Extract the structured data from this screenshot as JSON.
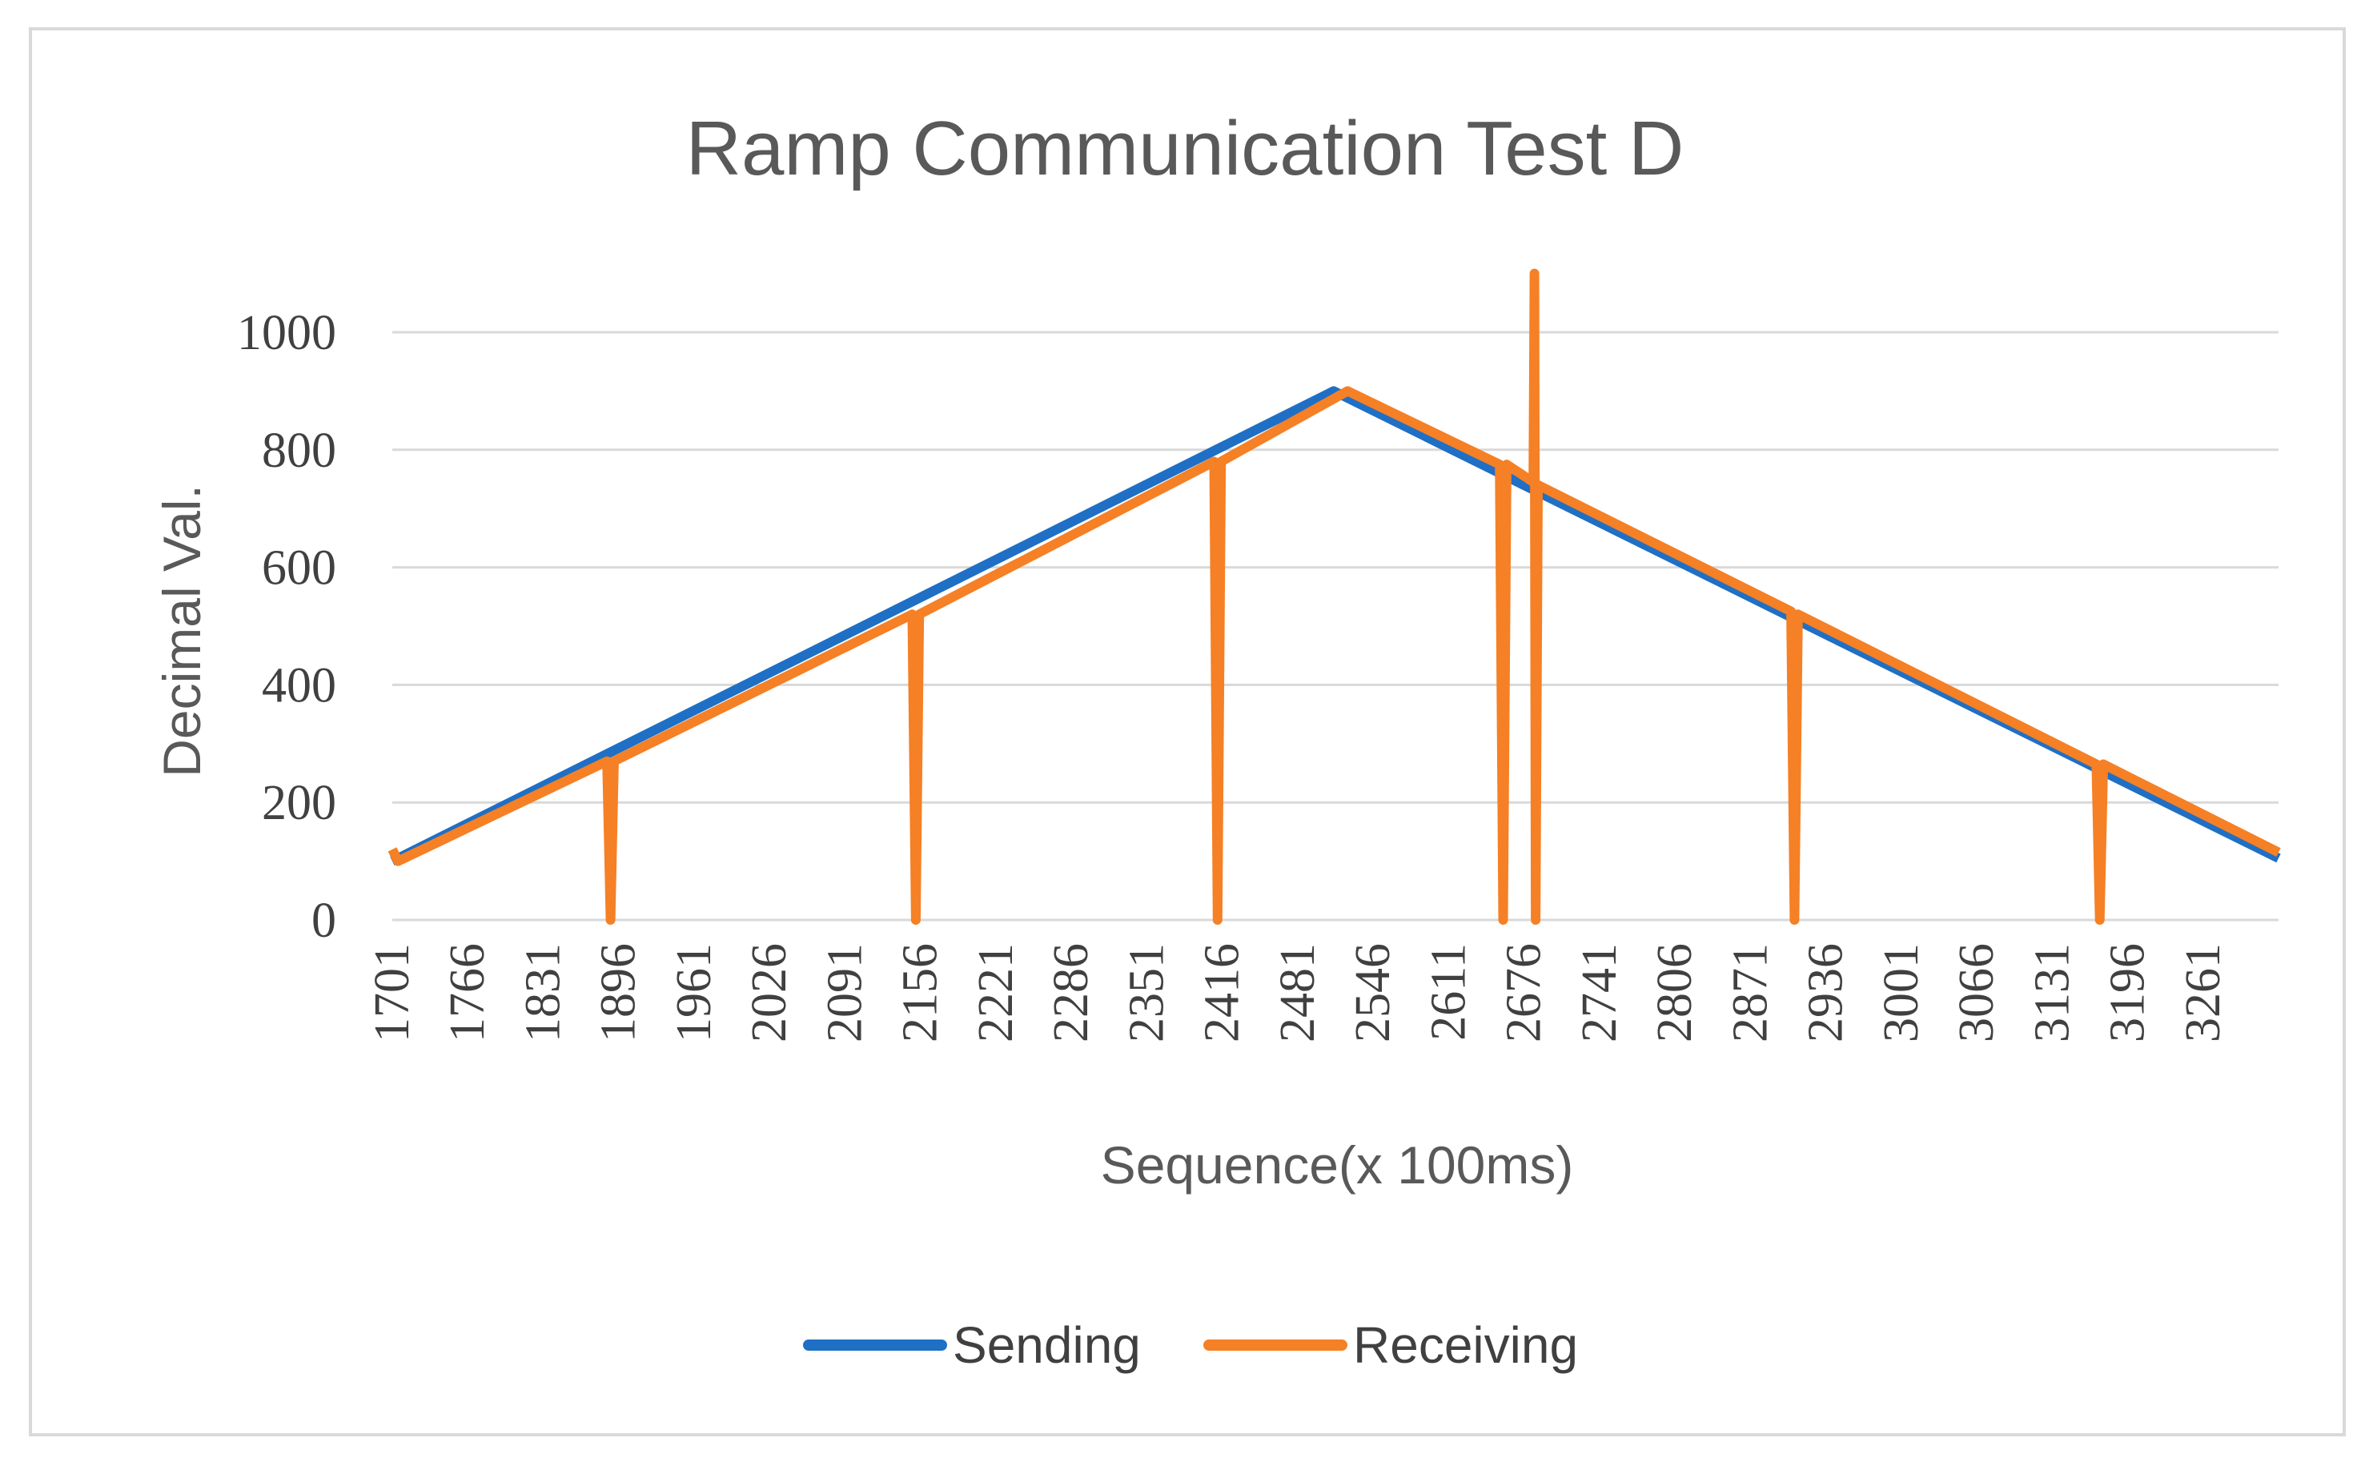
{
  "chart_data": {
    "type": "line",
    "title": "Ramp Communication Test  D",
    "xlabel": "Sequence(x 100ms)",
    "ylabel": "Decimal Val.",
    "ylim": [
      0,
      1000
    ],
    "yticks": [
      0,
      200,
      400,
      600,
      800,
      1000
    ],
    "xlim": [
      1701,
      3326
    ],
    "xticks": [
      1701,
      1766,
      1831,
      1896,
      1961,
      2026,
      2091,
      2156,
      2221,
      2286,
      2351,
      2416,
      2481,
      2546,
      2611,
      2676,
      2741,
      2806,
      2871,
      2936,
      3001,
      3066,
      3131,
      3196,
      3261
    ],
    "grid": true,
    "legend_position": "bottom",
    "colors": {
      "Sending": "#1f6fc5",
      "Receiving": "#f58025",
      "grid": "#d9d9d9",
      "text": "#595959"
    },
    "series": [
      {
        "name": "Sending",
        "points": [
          [
            1701,
            100
          ],
          [
            2512,
            900
          ],
          [
            3326,
            105
          ]
        ]
      },
      {
        "name": "Receiving",
        "points": [
          [
            1701,
            120
          ],
          [
            1706,
            100
          ],
          [
            1886,
            270
          ],
          [
            1889,
            0
          ],
          [
            1892,
            270
          ],
          [
            2149,
            520
          ],
          [
            2152,
            0
          ],
          [
            2155,
            520
          ],
          [
            2409,
            780
          ],
          [
            2412,
            0
          ],
          [
            2415,
            780
          ],
          [
            2524,
            900
          ],
          [
            2655,
            775
          ],
          [
            2658,
            0
          ],
          [
            2661,
            775
          ],
          [
            2684,
            745
          ],
          [
            2685,
            1100
          ],
          [
            2686,
            0
          ],
          [
            2688,
            740
          ],
          [
            2906,
            525
          ],
          [
            2909,
            0
          ],
          [
            2912,
            520
          ],
          [
            3169,
            265
          ],
          [
            3172,
            0
          ],
          [
            3175,
            265
          ],
          [
            3326,
            115
          ]
        ]
      }
    ]
  }
}
